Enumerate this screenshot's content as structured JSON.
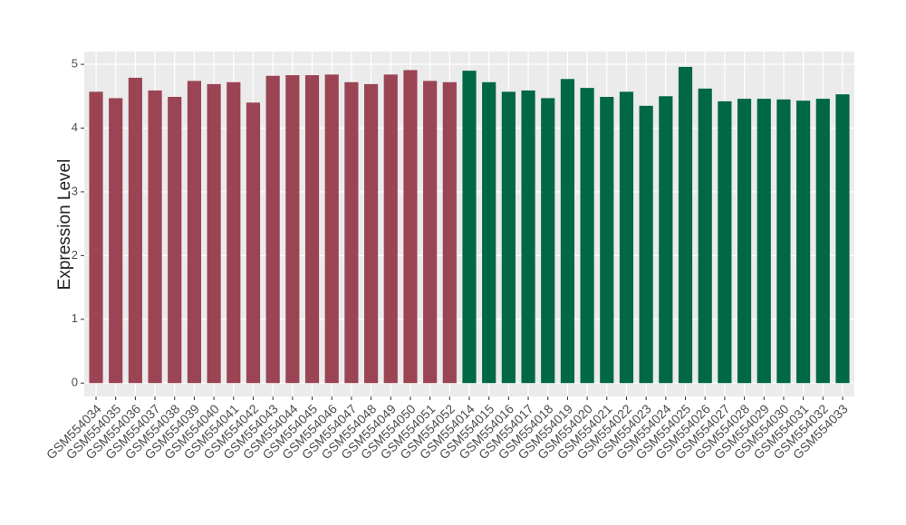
{
  "chart_data": {
    "type": "bar",
    "y_label": "Expression Level",
    "categories": [
      "GSM554034",
      "GSM554035",
      "GSM554036",
      "GSM554037",
      "GSM554038",
      "GSM554039",
      "GSM554040",
      "GSM554041",
      "GSM554042",
      "GSM554043",
      "GSM554044",
      "GSM554045",
      "GSM554046",
      "GSM554047",
      "GSM554048",
      "GSM554049",
      "GSM554050",
      "GSM554051",
      "GSM554052",
      "GSM554014",
      "GSM554015",
      "GSM554016",
      "GSM554017",
      "GSM554018",
      "GSM554019",
      "GSM554020",
      "GSM554021",
      "GSM554022",
      "GSM554023",
      "GSM554024",
      "GSM554025",
      "GSM554026",
      "GSM554027",
      "GSM554028",
      "GSM554029",
      "GSM554030",
      "GSM554031",
      "GSM554032",
      "GSM554033"
    ],
    "values": [
      4.57,
      4.47,
      4.79,
      4.59,
      4.49,
      4.74,
      4.69,
      4.72,
      4.4,
      4.82,
      4.83,
      4.83,
      4.84,
      4.72,
      4.69,
      4.84,
      4.91,
      4.74,
      4.72,
      4.9,
      4.72,
      4.57,
      4.59,
      4.47,
      4.77,
      4.63,
      4.49,
      4.57,
      4.35,
      4.5,
      4.96,
      4.62,
      4.42,
      4.46,
      4.46,
      4.45,
      4.43,
      4.46,
      4.53
    ],
    "colors": [
      "#9b4453",
      "#9b4453",
      "#9b4453",
      "#9b4453",
      "#9b4453",
      "#9b4453",
      "#9b4453",
      "#9b4453",
      "#9b4453",
      "#9b4453",
      "#9b4453",
      "#9b4453",
      "#9b4453",
      "#9b4453",
      "#9b4453",
      "#9b4453",
      "#9b4453",
      "#9b4453",
      "#9b4453",
      "#006845",
      "#006845",
      "#006845",
      "#006845",
      "#006845",
      "#006845",
      "#006845",
      "#006845",
      "#006845",
      "#006845",
      "#006845",
      "#006845",
      "#006845",
      "#006845",
      "#006845",
      "#006845",
      "#006845",
      "#006845",
      "#006845",
      "#006845"
    ],
    "ylim": [
      -0.21,
      5.2
    ],
    "yticks": [
      0,
      1,
      2,
      3,
      4,
      5
    ],
    "grid": true
  }
}
